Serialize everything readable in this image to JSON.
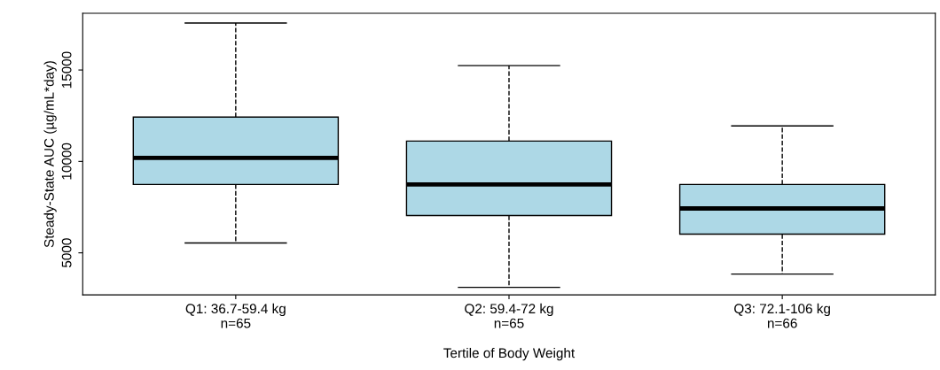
{
  "chart_data": {
    "type": "box",
    "xlabel": "Tertile of Body Weight",
    "ylabel": "Steady-State AUC (µg/mL*day)",
    "categories": [
      "Q1: 36.7-59.4 kg\nn=65",
      "Q2: 59.4-72 kg\nn=65",
      "Q3: 72.1-106 kg\nn=66"
    ],
    "boxes": [
      {
        "low": 5540,
        "q1": 8740,
        "median": 10195,
        "q3": 12425,
        "high": 17570
      },
      {
        "low": 3110,
        "q1": 7040,
        "median": 8740,
        "q3": 11115,
        "high": 15240
      },
      {
        "low": 3840,
        "q1": 6020,
        "median": 7430,
        "q3": 8740,
        "high": 11940
      }
    ],
    "color": "#add8e6",
    "ylim": [
      2700,
      18100
    ],
    "yticks": [
      5000,
      10000,
      15000
    ],
    "grid": false,
    "legend": false
  }
}
